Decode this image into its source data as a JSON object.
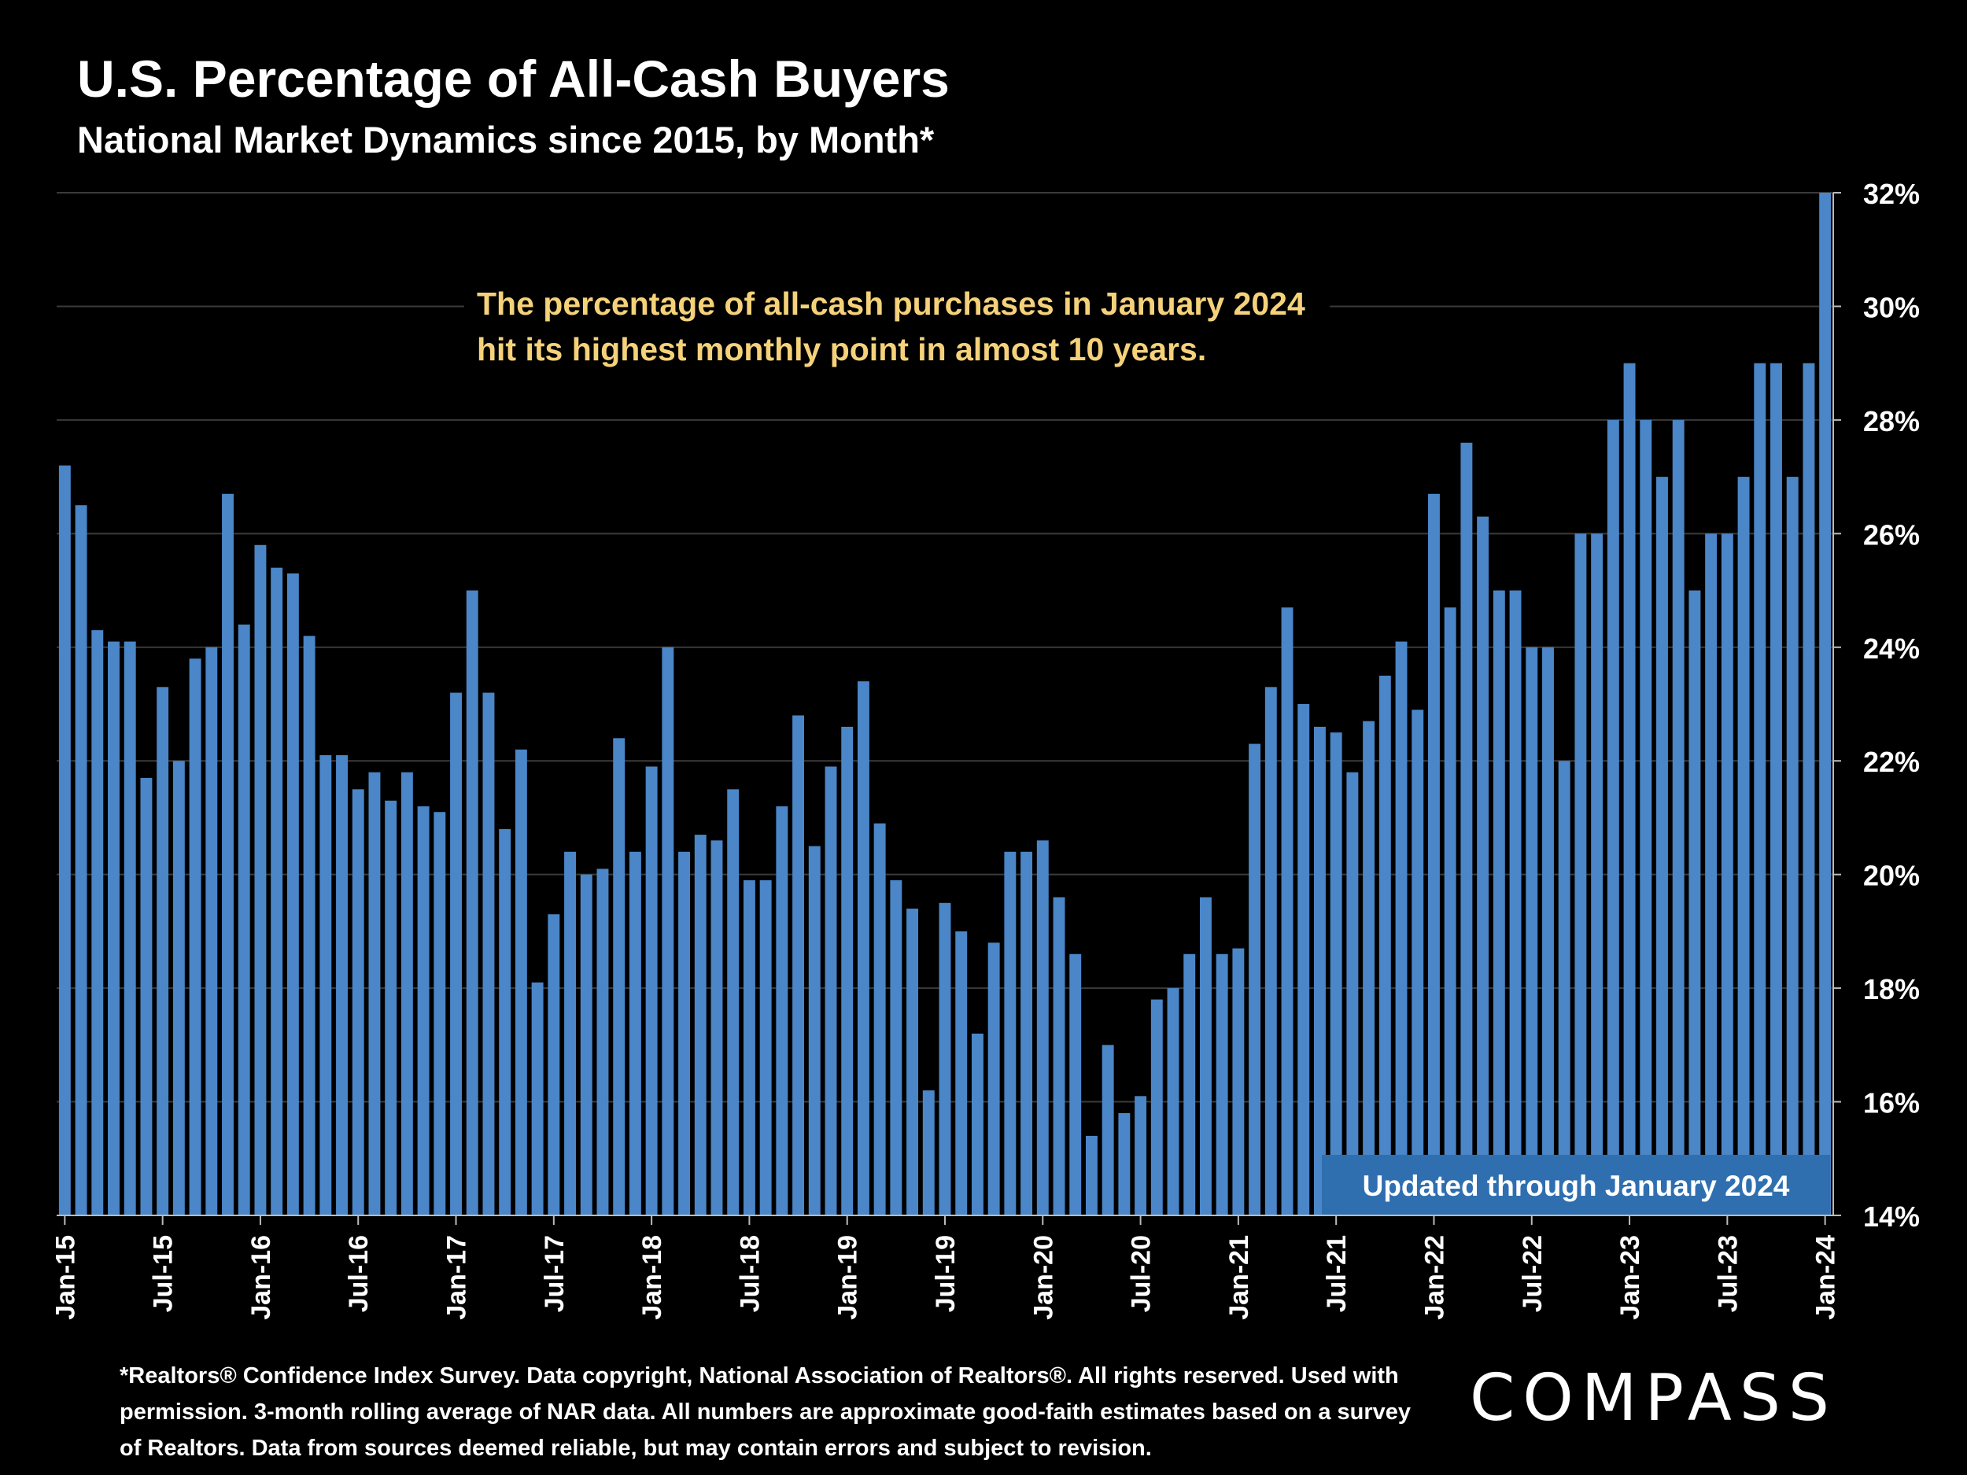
{
  "header": {
    "title": "U.S. Percentage of All-Cash Buyers",
    "subtitle": "National Market Dynamics since 2015, by Month*"
  },
  "footer": {
    "footnote": "*Realtors® Confidence Index Survey. Data copyright, National Association of Realtors®. All rights reserved. Used with permission. 3-month rolling average of NAR data. All numbers are approximate good-faith estimates based on a survey of Realtors. Data from sources deemed reliable, but may contain errors and subject to revision.",
    "logo": "COMPASS"
  },
  "chart_data": {
    "type": "bar",
    "ylim": [
      14,
      32
    ],
    "yticks": [
      "32%",
      "30%",
      "28%",
      "26%",
      "24%",
      "22%",
      "20%",
      "18%",
      "16%",
      "14%"
    ],
    "ytick_values": [
      32,
      30,
      28,
      26,
      24,
      22,
      20,
      18,
      16,
      14
    ],
    "grid": true,
    "bar_color": "#4a86c8",
    "xtick_labels": [
      "Jan-15",
      "Jul-15",
      "Jan-16",
      "Jul-16",
      "Jan-17",
      "Jul-17",
      "Jan-18",
      "Jul-18",
      "Jan-19",
      "Jul-19",
      "Jan-20",
      "Jul-20",
      "Jan-21",
      "Jul-21",
      "Jan-22",
      "Jul-22",
      "Jan-23",
      "Jul-23",
      "Jan-24"
    ],
    "annotation": {
      "line1": "The percentage of all-cash purchases in January 2024",
      "line2": "hit its highest monthly point in almost 10 years.",
      "color": "#f5d27a"
    },
    "badge": "Updated through January 2024",
    "badge_color": "#2f6fb0",
    "start_month": "Jan-15",
    "values": [
      27.2,
      26.5,
      24.3,
      24.1,
      24.1,
      21.7,
      23.3,
      22,
      23.8,
      24,
      26.7,
      24.4,
      25.8,
      25.4,
      25.3,
      24.2,
      22.1,
      22.1,
      21.5,
      21.8,
      21.3,
      21.8,
      21.2,
      21.1,
      23.2,
      25,
      23.2,
      20.8,
      22.2,
      18.1,
      19.3,
      20.4,
      20,
      20.1,
      22.4,
      20.4,
      21.9,
      24,
      20.4,
      20.7,
      20.6,
      21.5,
      19.9,
      19.9,
      21.2,
      22.8,
      20.5,
      21.9,
      22.6,
      23.4,
      20.9,
      19.9,
      19.4,
      16.2,
      19.5,
      19,
      17.2,
      18.8,
      20.4,
      20.4,
      20.6,
      19.6,
      18.6,
      15.4,
      17,
      15.8,
      16.1,
      17.8,
      18,
      18.6,
      19.6,
      18.6,
      18.7,
      22.3,
      23.3,
      24.7,
      23,
      22.6,
      22.5,
      21.8,
      22.7,
      23.5,
      24.1,
      22.9,
      26.7,
      24.7,
      27.6,
      26.3,
      25,
      25,
      24,
      24,
      22,
      26,
      26,
      28,
      29,
      28,
      27,
      28,
      25,
      26,
      26,
      27,
      29,
      29,
      27,
      29,
      32
    ]
  }
}
